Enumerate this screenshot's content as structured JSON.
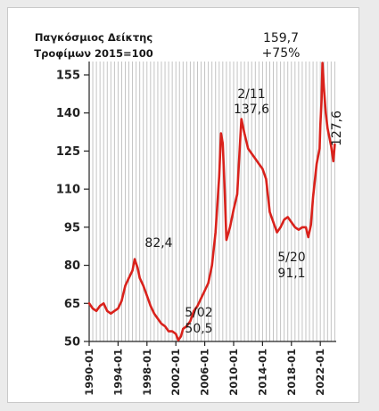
{
  "chart_data": {
    "type": "line",
    "title": "Παγκόσμιος Δείκτης",
    "subtitle": "Τροφίμων 2015=100",
    "xlabel": "",
    "ylabel": "",
    "ylim": [
      50,
      160
    ],
    "yticks": [
      "50",
      "65",
      "80",
      "95",
      "110",
      "125",
      "140",
      "155"
    ],
    "xticks": [
      "1990-01",
      "1994-01",
      "1998-01",
      "2002-01",
      "2006-01",
      "2010-01",
      "2014-01",
      "2018-01",
      "2022-01"
    ],
    "grid": "vertical",
    "series": [
      {
        "color": "#d9221c",
        "x": [
          1990.0,
          1990.5,
          1991.0,
          1991.5,
          1992.0,
          1992.5,
          1993.0,
          1993.5,
          1994.0,
          1994.5,
          1995.0,
          1995.5,
          1996.0,
          1996.3,
          1996.7,
          1997.0,
          1997.5,
          1998.0,
          1998.5,
          1999.0,
          1999.5,
          2000.0,
          2000.5,
          2001.0,
          2001.5,
          2002.0,
          2002.33,
          2002.7,
          2003.0,
          2003.5,
          2004.0,
          2004.5,
          2005.0,
          2005.5,
          2006.0,
          2006.5,
          2007.0,
          2007.5,
          2008.0,
          2008.25,
          2008.5,
          2008.75,
          2009.0,
          2009.5,
          2010.0,
          2010.5,
          2010.8,
          2011.08,
          2011.5,
          2012.0,
          2012.5,
          2013.0,
          2013.5,
          2014.0,
          2014.5,
          2015.0,
          2015.5,
          2016.0,
          2016.5,
          2017.0,
          2017.5,
          2018.0,
          2018.5,
          2019.0,
          2019.5,
          2020.0,
          2020.33,
          2020.7,
          2021.0,
          2021.5,
          2021.9,
          2022.0,
          2022.17,
          2022.3,
          2022.5,
          2022.75,
          2023.0,
          2023.5,
          2023.8,
          2024.0
        ],
        "y": [
          65,
          63,
          62,
          64,
          65,
          62,
          61,
          62,
          63,
          66,
          72,
          75,
          78,
          82.4,
          79,
          75,
          72,
          68,
          64,
          61,
          59,
          57,
          56,
          54,
          54,
          53,
          50.5,
          52,
          55,
          56,
          58,
          62,
          64,
          67,
          70,
          73,
          80,
          93,
          115,
          132,
          128,
          110,
          90,
          95,
          102,
          108,
          124,
          137.6,
          132,
          126,
          124,
          122,
          120,
          118,
          114,
          101,
          97,
          93,
          95,
          98,
          99,
          97,
          95,
          94,
          95,
          95,
          91.1,
          96,
          107,
          120,
          126,
          135,
          145,
          159.7,
          150,
          140,
          134,
          127,
          121,
          127.6
        ]
      }
    ],
    "annotations": [
      {
        "line1": "159,7",
        "line2": "+75%"
      },
      {
        "line1": "2/11",
        "line2": "137,6"
      },
      {
        "line1": "82,4"
      },
      {
        "line1": "5/20",
        "line2": "91,1"
      },
      {
        "line1": "5/02",
        "line2": "50,5"
      },
      {
        "line1": "127,6"
      }
    ]
  }
}
